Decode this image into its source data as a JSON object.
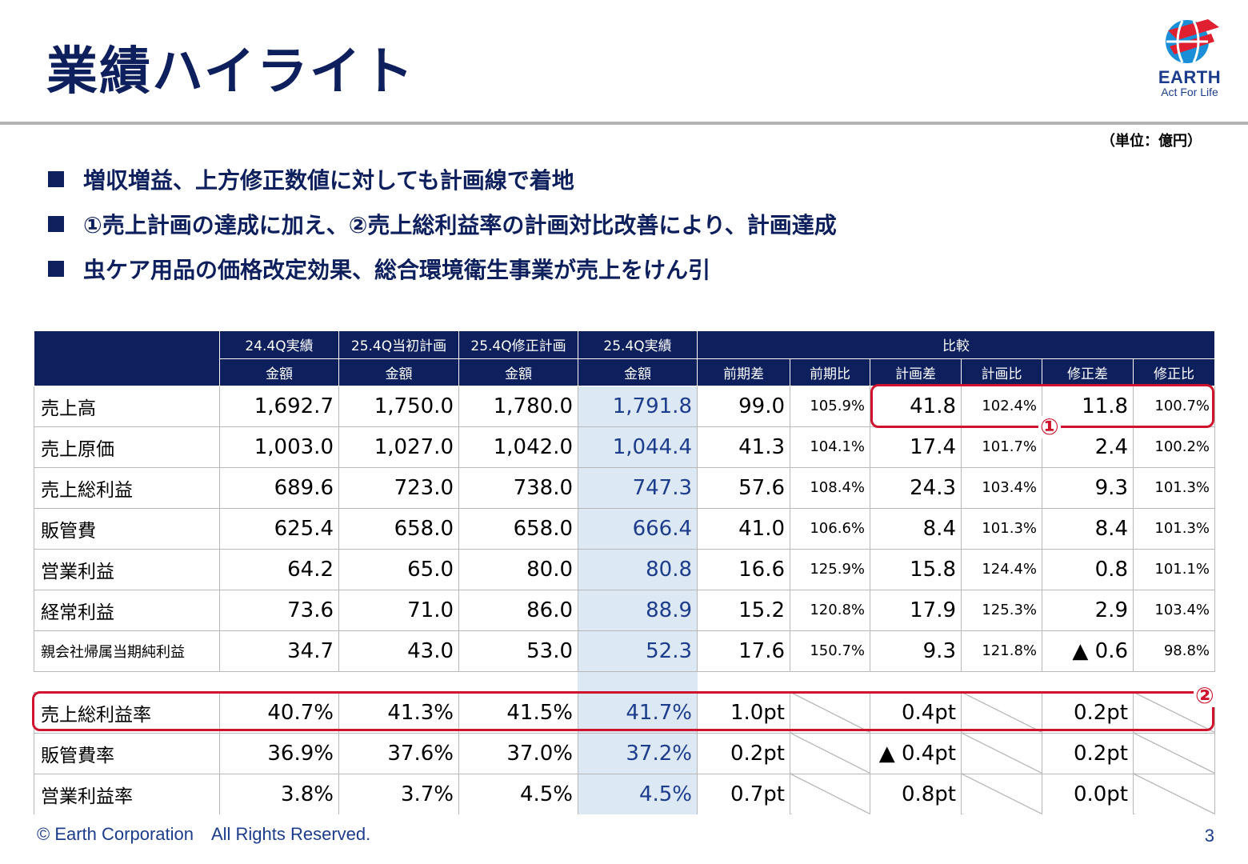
{
  "title": "業績ハイライト",
  "logo": {
    "brand": "EARTH",
    "tagline": "Act For Life"
  },
  "unit": "（単位：億円）",
  "bullets": [
    "増収増益、上方修正数値に対しても計画線で着地",
    "①売上計画の達成に加え、②売上総利益率の計画対比改善により、計画達成",
    "虫ケア用品の価格改定効果、総合環境衛生事業が売上をけん引"
  ],
  "table": {
    "group_headers": [
      "24.4Q実績",
      "25.4Q当初計画",
      "25.4Q修正計画",
      "25.4Q実績",
      "比較"
    ],
    "sub_headers": [
      "金額",
      "金額",
      "金額",
      "金額",
      "前期差",
      "前期比",
      "計画差",
      "計画比",
      "修正差",
      "修正比"
    ],
    "rows": [
      {
        "label": "売上高",
        "values": [
          "1,692.7",
          "1,750.0",
          "1,780.0",
          "1,791.8",
          "99.0",
          "105.9%",
          "41.8",
          "102.4%",
          "11.8",
          "100.7%"
        ]
      },
      {
        "label": "売上原価",
        "values": [
          "1,003.0",
          "1,027.0",
          "1,042.0",
          "1,044.4",
          "41.3",
          "104.1%",
          "17.4",
          "101.7%",
          "2.4",
          "100.2%"
        ]
      },
      {
        "label": "売上総利益",
        "values": [
          "689.6",
          "723.0",
          "738.0",
          "747.3",
          "57.6",
          "108.4%",
          "24.3",
          "103.4%",
          "9.3",
          "101.3%"
        ]
      },
      {
        "label": "販管費",
        "values": [
          "625.4",
          "658.0",
          "658.0",
          "666.4",
          "41.0",
          "106.6%",
          "8.4",
          "101.3%",
          "8.4",
          "101.3%"
        ]
      },
      {
        "label": "営業利益",
        "values": [
          "64.2",
          "65.0",
          "80.0",
          "80.8",
          "16.6",
          "125.9%",
          "15.8",
          "124.4%",
          "0.8",
          "101.1%"
        ]
      },
      {
        "label": "経常利益",
        "values": [
          "73.6",
          "71.0",
          "86.0",
          "88.9",
          "15.2",
          "120.8%",
          "17.9",
          "125.3%",
          "2.9",
          "103.4%"
        ]
      },
      {
        "label": "親会社帰属当期純利益",
        "values": [
          "34.7",
          "43.0",
          "53.0",
          "52.3",
          "17.6",
          "150.7%",
          "9.3",
          "121.8%",
          "▲ 0.6",
          "98.8%"
        ]
      }
    ],
    "ratio_rows": [
      {
        "label": "売上総利益率",
        "values": [
          "40.7%",
          "41.3%",
          "41.5%",
          "41.7%",
          "1.0pt",
          "0.4pt",
          "0.2pt"
        ]
      },
      {
        "label": "販管費率",
        "values": [
          "36.9%",
          "37.6%",
          "37.0%",
          "37.2%",
          "0.2pt",
          "▲ 0.4pt",
          "0.2pt"
        ]
      },
      {
        "label": "営業利益率",
        "values": [
          "3.8%",
          "3.7%",
          "4.5%",
          "4.5%",
          "0.7pt",
          "0.8pt",
          "0.0pt"
        ]
      }
    ]
  },
  "markers": {
    "one": "①",
    "two": "②"
  },
  "colors": {
    "navy": "#0d1f5c",
    "highlight_red": "#d0132c",
    "actual_col_bg": "#dde8f5"
  },
  "footer": {
    "copyright": "© Earth Corporation　All Rights Reserved.",
    "page": "3"
  }
}
